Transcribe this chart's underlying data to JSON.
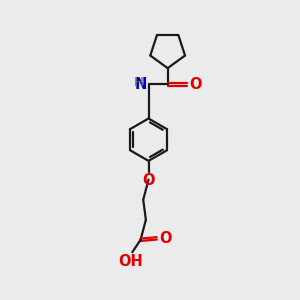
{
  "bg_color": "#ebebeb",
  "bond_color": "#1a1a1a",
  "O_color": "#e00000",
  "N_color": "#0000cc",
  "H_color": "#666666",
  "line_width": 1.6,
  "font_size": 10.5,
  "fig_size": [
    3.0,
    3.0
  ],
  "dpi": 100,
  "xlim": [
    0,
    5
  ],
  "ylim": [
    0,
    10
  ]
}
